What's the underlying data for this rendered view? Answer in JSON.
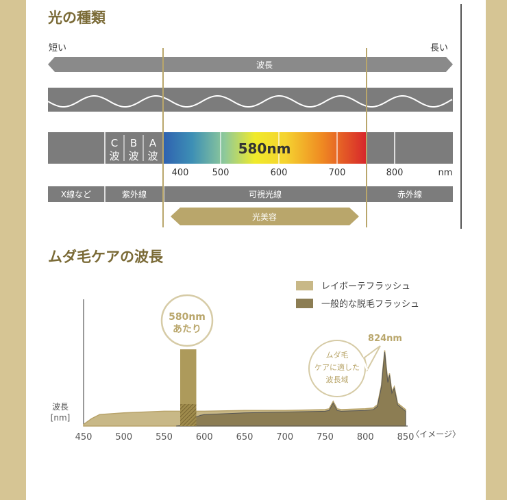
{
  "section1": {
    "title": "光の種類",
    "short_label": "短い",
    "long_label": "長い",
    "wavelength_arrow_label": "波長",
    "uv_letters": [
      {
        "letter": "C",
        "sub": "波"
      },
      {
        "letter": "B",
        "sub": "波"
      },
      {
        "letter": "A",
        "sub": "波"
      }
    ],
    "highlight_label": "580nm",
    "ticks": [
      "400",
      "500",
      "600",
      "700",
      "800"
    ],
    "tick_unit": "nm",
    "categories": [
      "X線など",
      "紫外線",
      "可視光線",
      "赤外線"
    ],
    "beauty_arrow_label": "光美容",
    "colors": {
      "accent": "#b9a66b",
      "band": "#7c7c7c",
      "title": "#7a6a36"
    }
  },
  "section2": {
    "title": "ムダ毛ケアの波長",
    "callout_580": [
      "580nm",
      "あたり"
    ],
    "peak_label": "824nm",
    "bubble_text": [
      "ムダ毛",
      "ケアに適した",
      "波長域"
    ],
    "ylabel": [
      "波長",
      "[nm]"
    ],
    "note": "〈イメージ〉"
  },
  "chart_data": {
    "type": "area",
    "title": "ムダ毛ケアの波長",
    "xlabel": "",
    "ylabel": "波長 [nm]",
    "xlim": [
      450,
      850
    ],
    "x_ticks": [
      450,
      500,
      550,
      600,
      650,
      700,
      750,
      800,
      850
    ],
    "legend_position": "top-right",
    "grid": false,
    "highlight_band": [
      570,
      590
    ],
    "series": [
      {
        "name": "レイボーテフラッシュ",
        "color": "#c8b887",
        "x": [
          450,
          460,
          470,
          500,
          550,
          600,
          650,
          700,
          750,
          755,
          760,
          765,
          770,
          800,
          810,
          815,
          820,
          822,
          824,
          826,
          828,
          830,
          833,
          836,
          840,
          845,
          850
        ],
        "y": [
          2,
          9,
          14,
          16,
          18,
          18,
          19,
          19,
          20,
          21,
          30,
          21,
          20,
          21,
          22,
          26,
          50,
          72,
          92,
          72,
          55,
          64,
          42,
          48,
          28,
          24,
          20
        ]
      },
      {
        "name": "一般的な脱毛フラッシュ",
        "color": "#8c7d53",
        "x": [
          565,
          570,
          575,
          580,
          585,
          590,
          595,
          600,
          650,
          700,
          750,
          755,
          760,
          765,
          770,
          800,
          810,
          815,
          820,
          822,
          824,
          826,
          828,
          830,
          833,
          836,
          840,
          845,
          850
        ],
        "y": [
          0,
          0.5,
          1.5,
          4,
          8,
          11,
          13,
          14,
          16,
          17,
          18,
          19,
          28,
          19,
          18,
          19,
          20,
          24,
          48,
          70,
          90,
          70,
          53,
          62,
          40,
          46,
          26,
          22,
          18
        ]
      }
    ]
  }
}
